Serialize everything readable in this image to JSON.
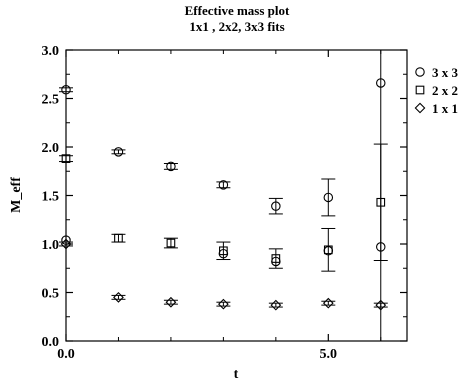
{
  "chart_data": {
    "type": "scatter",
    "title": "Effective mass plot",
    "subtitle": "1x1 , 2x2, 3x3 fits",
    "xlabel": "t",
    "ylabel": "M_eff",
    "xlim": [
      0,
      6.5
    ],
    "ylim": [
      0,
      3.0
    ],
    "x_ticks": [
      "0.0",
      "5.0"
    ],
    "y_ticks": [
      "0.0",
      "0.5",
      "1.0",
      "1.5",
      "2.0",
      "2.5",
      "3.0"
    ],
    "legend_position": "right",
    "series": [
      {
        "name": "3 x 3",
        "marker": "circle",
        "points": [
          {
            "x": 0,
            "y": 2.59,
            "err": 0.02
          },
          {
            "x": 1,
            "y": 1.95,
            "err": 0.02
          },
          {
            "x": 2,
            "y": 1.8,
            "err": 0.03
          },
          {
            "x": 3,
            "y": 1.61,
            "err": 0.03
          },
          {
            "x": 4,
            "y": 1.39,
            "err": 0.08
          },
          {
            "x": 5,
            "y": 1.48,
            "err": 0.19
          },
          {
            "x": 6,
            "y": 2.66,
            "err": 3.0
          }
        ]
      },
      {
        "name": "2 x 2",
        "marker": "square",
        "points": [
          {
            "x": 0,
            "y": 1.88,
            "err": 0.03
          },
          {
            "x": 1,
            "y": 1.06,
            "err": 0.04
          },
          {
            "x": 2,
            "y": 1.01,
            "err": 0.05
          },
          {
            "x": 3,
            "y": 0.93,
            "err": 0.09
          },
          {
            "x": 4,
            "y": 0.85,
            "err": 0.1
          },
          {
            "x": 5,
            "y": 0.94,
            "err": 0.22
          },
          {
            "x": 6,
            "y": 1.43,
            "err": 0.6
          }
        ]
      },
      {
        "name": "1 x 1",
        "marker": "diamond",
        "points": [
          {
            "x": 0,
            "y": 1.0,
            "err": 0.02
          },
          {
            "x": 1,
            "y": 0.45,
            "err": 0.02
          },
          {
            "x": 2,
            "y": 0.4,
            "err": 0.02
          },
          {
            "x": 3,
            "y": 0.38,
            "err": 0.02
          },
          {
            "x": 4,
            "y": 0.37,
            "err": 0.02
          },
          {
            "x": 5,
            "y": 0.39,
            "err": 0.02
          },
          {
            "x": 6,
            "y": 0.37,
            "err": 0.02
          }
        ]
      }
    ],
    "extra_points": [
      {
        "series": "3 x 3",
        "x": 0,
        "y": 1.04
      },
      {
        "series": "3 x 3",
        "x": 3,
        "y": 0.9
      },
      {
        "series": "3 x 3",
        "x": 4,
        "y": 0.82
      },
      {
        "series": "3 x 3",
        "x": 5,
        "y": 0.93
      },
      {
        "series": "3 x 3",
        "x": 6,
        "y": 0.97
      }
    ],
    "colors": {
      "axis": "#000000",
      "marker": "#000000",
      "background": "#ffffff"
    }
  }
}
